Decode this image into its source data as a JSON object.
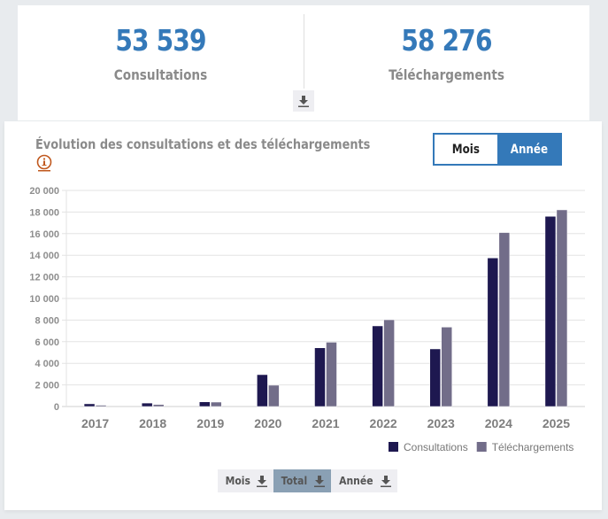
{
  "stats": {
    "consultations": {
      "value": "53 539",
      "label": "Consultations"
    },
    "downloads": {
      "value": "58 276",
      "label": "Téléchargements"
    },
    "download_icon": "download-icon"
  },
  "chart_panel": {
    "title": "Évolution des consultations et des téléchargements",
    "info_icon": "info-icon",
    "toggle": {
      "options": [
        "Mois",
        "Année"
      ],
      "selected": "Année"
    },
    "export": {
      "buttons": [
        {
          "label": "Mois",
          "icon": "download-icon"
        },
        {
          "label": "Total",
          "icon": "download-icon",
          "selected": true
        },
        {
          "label": "Année",
          "icon": "download-icon"
        }
      ]
    }
  },
  "colors": {
    "accent": "#3479b9",
    "consultations": "#1e1850",
    "downloads": "#726d89"
  },
  "chart_data": {
    "type": "bar",
    "title": "Évolution des consultations et des téléchargements",
    "xlabel": "",
    "ylabel": "",
    "categories": [
      "2017",
      "2018",
      "2019",
      "2020",
      "2021",
      "2022",
      "2023",
      "2024",
      "2025"
    ],
    "series": [
      {
        "name": "Consultations",
        "color": "#1e1850",
        "values": [
          250,
          320,
          430,
          2950,
          5430,
          7460,
          5330,
          13750,
          17600
        ]
      },
      {
        "name": "Téléchargements",
        "color": "#726d89",
        "values": [
          120,
          190,
          410,
          1970,
          5950,
          8030,
          7350,
          16100,
          18200
        ]
      }
    ],
    "ylim": [
      0,
      20000
    ],
    "yticks": [
      0,
      2000,
      4000,
      6000,
      8000,
      10000,
      12000,
      14000,
      16000,
      18000,
      20000
    ],
    "ytick_labels": [
      "0",
      "2 000",
      "4 000",
      "6 000",
      "8 000",
      "10 000",
      "12 000",
      "14 000",
      "16 000",
      "18 000",
      "20 000"
    ],
    "grid": true,
    "legend": "bottom-right"
  }
}
